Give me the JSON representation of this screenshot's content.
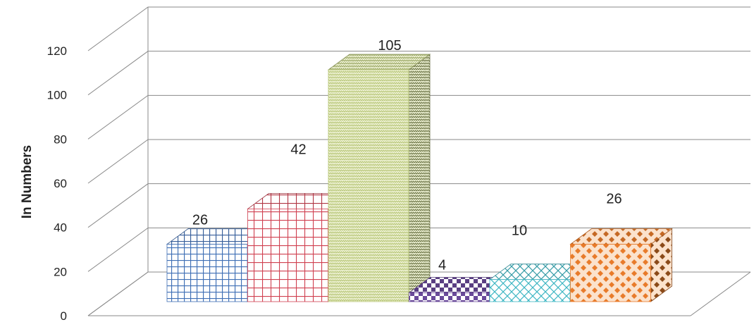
{
  "chart_data": {
    "type": "bar",
    "title": "",
    "xlabel": "",
    "ylabel": "In Numbers",
    "ylim": [
      0,
      120
    ],
    "yticks": [
      0,
      20,
      40,
      60,
      80,
      100,
      120
    ],
    "grid": true,
    "legend": "none",
    "three_d": true,
    "values": [
      26,
      42,
      105,
      4,
      10,
      26
    ],
    "data_labels": [
      "26",
      "42",
      "105",
      "4",
      "10",
      "26"
    ],
    "bar_colors": [
      "#3f6fb5",
      "#d04050",
      "#b9c77a",
      "#6a4a9a",
      "#3fb7c4",
      "#e87b2a"
    ],
    "bar_patterns": [
      "grid",
      "grid-wide",
      "zigzag",
      "checker",
      "diamond-outline",
      "diamond-dots"
    ]
  }
}
